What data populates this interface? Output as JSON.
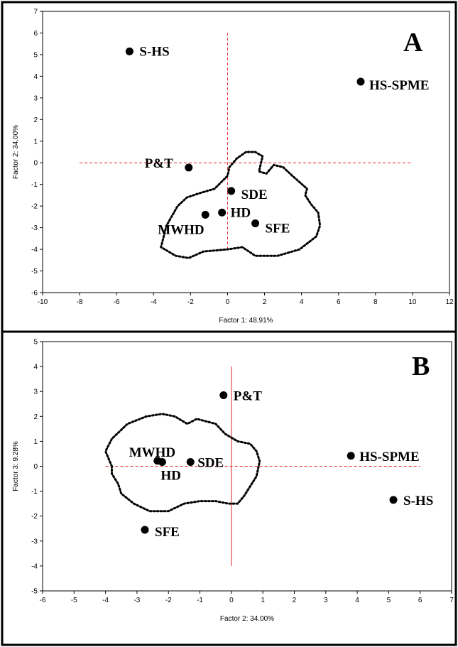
{
  "chart_data": [
    {
      "type": "scatter",
      "panel_label": "A",
      "xlabel": "Factor 1: 48.91%",
      "ylabel": "Factor 2: 34.00%",
      "xlim": [
        -10,
        12
      ],
      "ylim": [
        -6,
        7
      ],
      "xticks": [
        "-10",
        "-8",
        "-6",
        "-4",
        "-2",
        "0",
        "2",
        "4",
        "6",
        "8",
        "10",
        "12"
      ],
      "yticks": [
        "-6",
        "-5",
        "-4",
        "-3",
        "-2",
        "-1",
        "0",
        "1",
        "2",
        "3",
        "4",
        "5",
        "6",
        "7"
      ],
      "grid": false,
      "points": [
        {
          "label": "S-HS",
          "x": -5.3,
          "y": 5.15
        },
        {
          "label": "HS-SPME",
          "x": 7.2,
          "y": 3.75
        },
        {
          "label": "P&T",
          "x": -2.1,
          "y": -0.22
        },
        {
          "label": "SDE",
          "x": 0.2,
          "y": -1.3
        },
        {
          "label": "HD",
          "x": -0.3,
          "y": -2.3
        },
        {
          "label": "MWHD",
          "x": -1.2,
          "y": -2.4
        },
        {
          "label": "SFE",
          "x": 1.5,
          "y": -2.8
        }
      ]
    },
    {
      "type": "scatter",
      "panel_label": "B",
      "xlabel": "Factor 2: 34.00%",
      "ylabel": "Factor 3:  9.28%",
      "xlim": [
        -6,
        7
      ],
      "ylim": [
        -5,
        5
      ],
      "xticks": [
        "-6",
        "-5",
        "-4",
        "-3",
        "-2",
        "-1",
        "0",
        "1",
        "2",
        "3",
        "4",
        "5",
        "6",
        "7"
      ],
      "yticks": [
        "-5",
        "-4",
        "-3",
        "-2",
        "-1",
        "0",
        "1",
        "2",
        "3",
        "4",
        "5"
      ],
      "grid": false,
      "points": [
        {
          "label": "P&T",
          "x": -0.25,
          "y": 2.85
        },
        {
          "label": "MWHD",
          "x": -2.35,
          "y": 0.22
        },
        {
          "label": "HD",
          "x": -2.2,
          "y": 0.17
        },
        {
          "label": "SDE",
          "x": -1.3,
          "y": 0.17
        },
        {
          "label": "HS-SPME",
          "x": 3.8,
          "y": 0.42
        },
        {
          "label": "S-HS",
          "x": 5.15,
          "y": -1.35
        },
        {
          "label": "SFE",
          "x": -2.75,
          "y": -2.55
        }
      ]
    }
  ]
}
